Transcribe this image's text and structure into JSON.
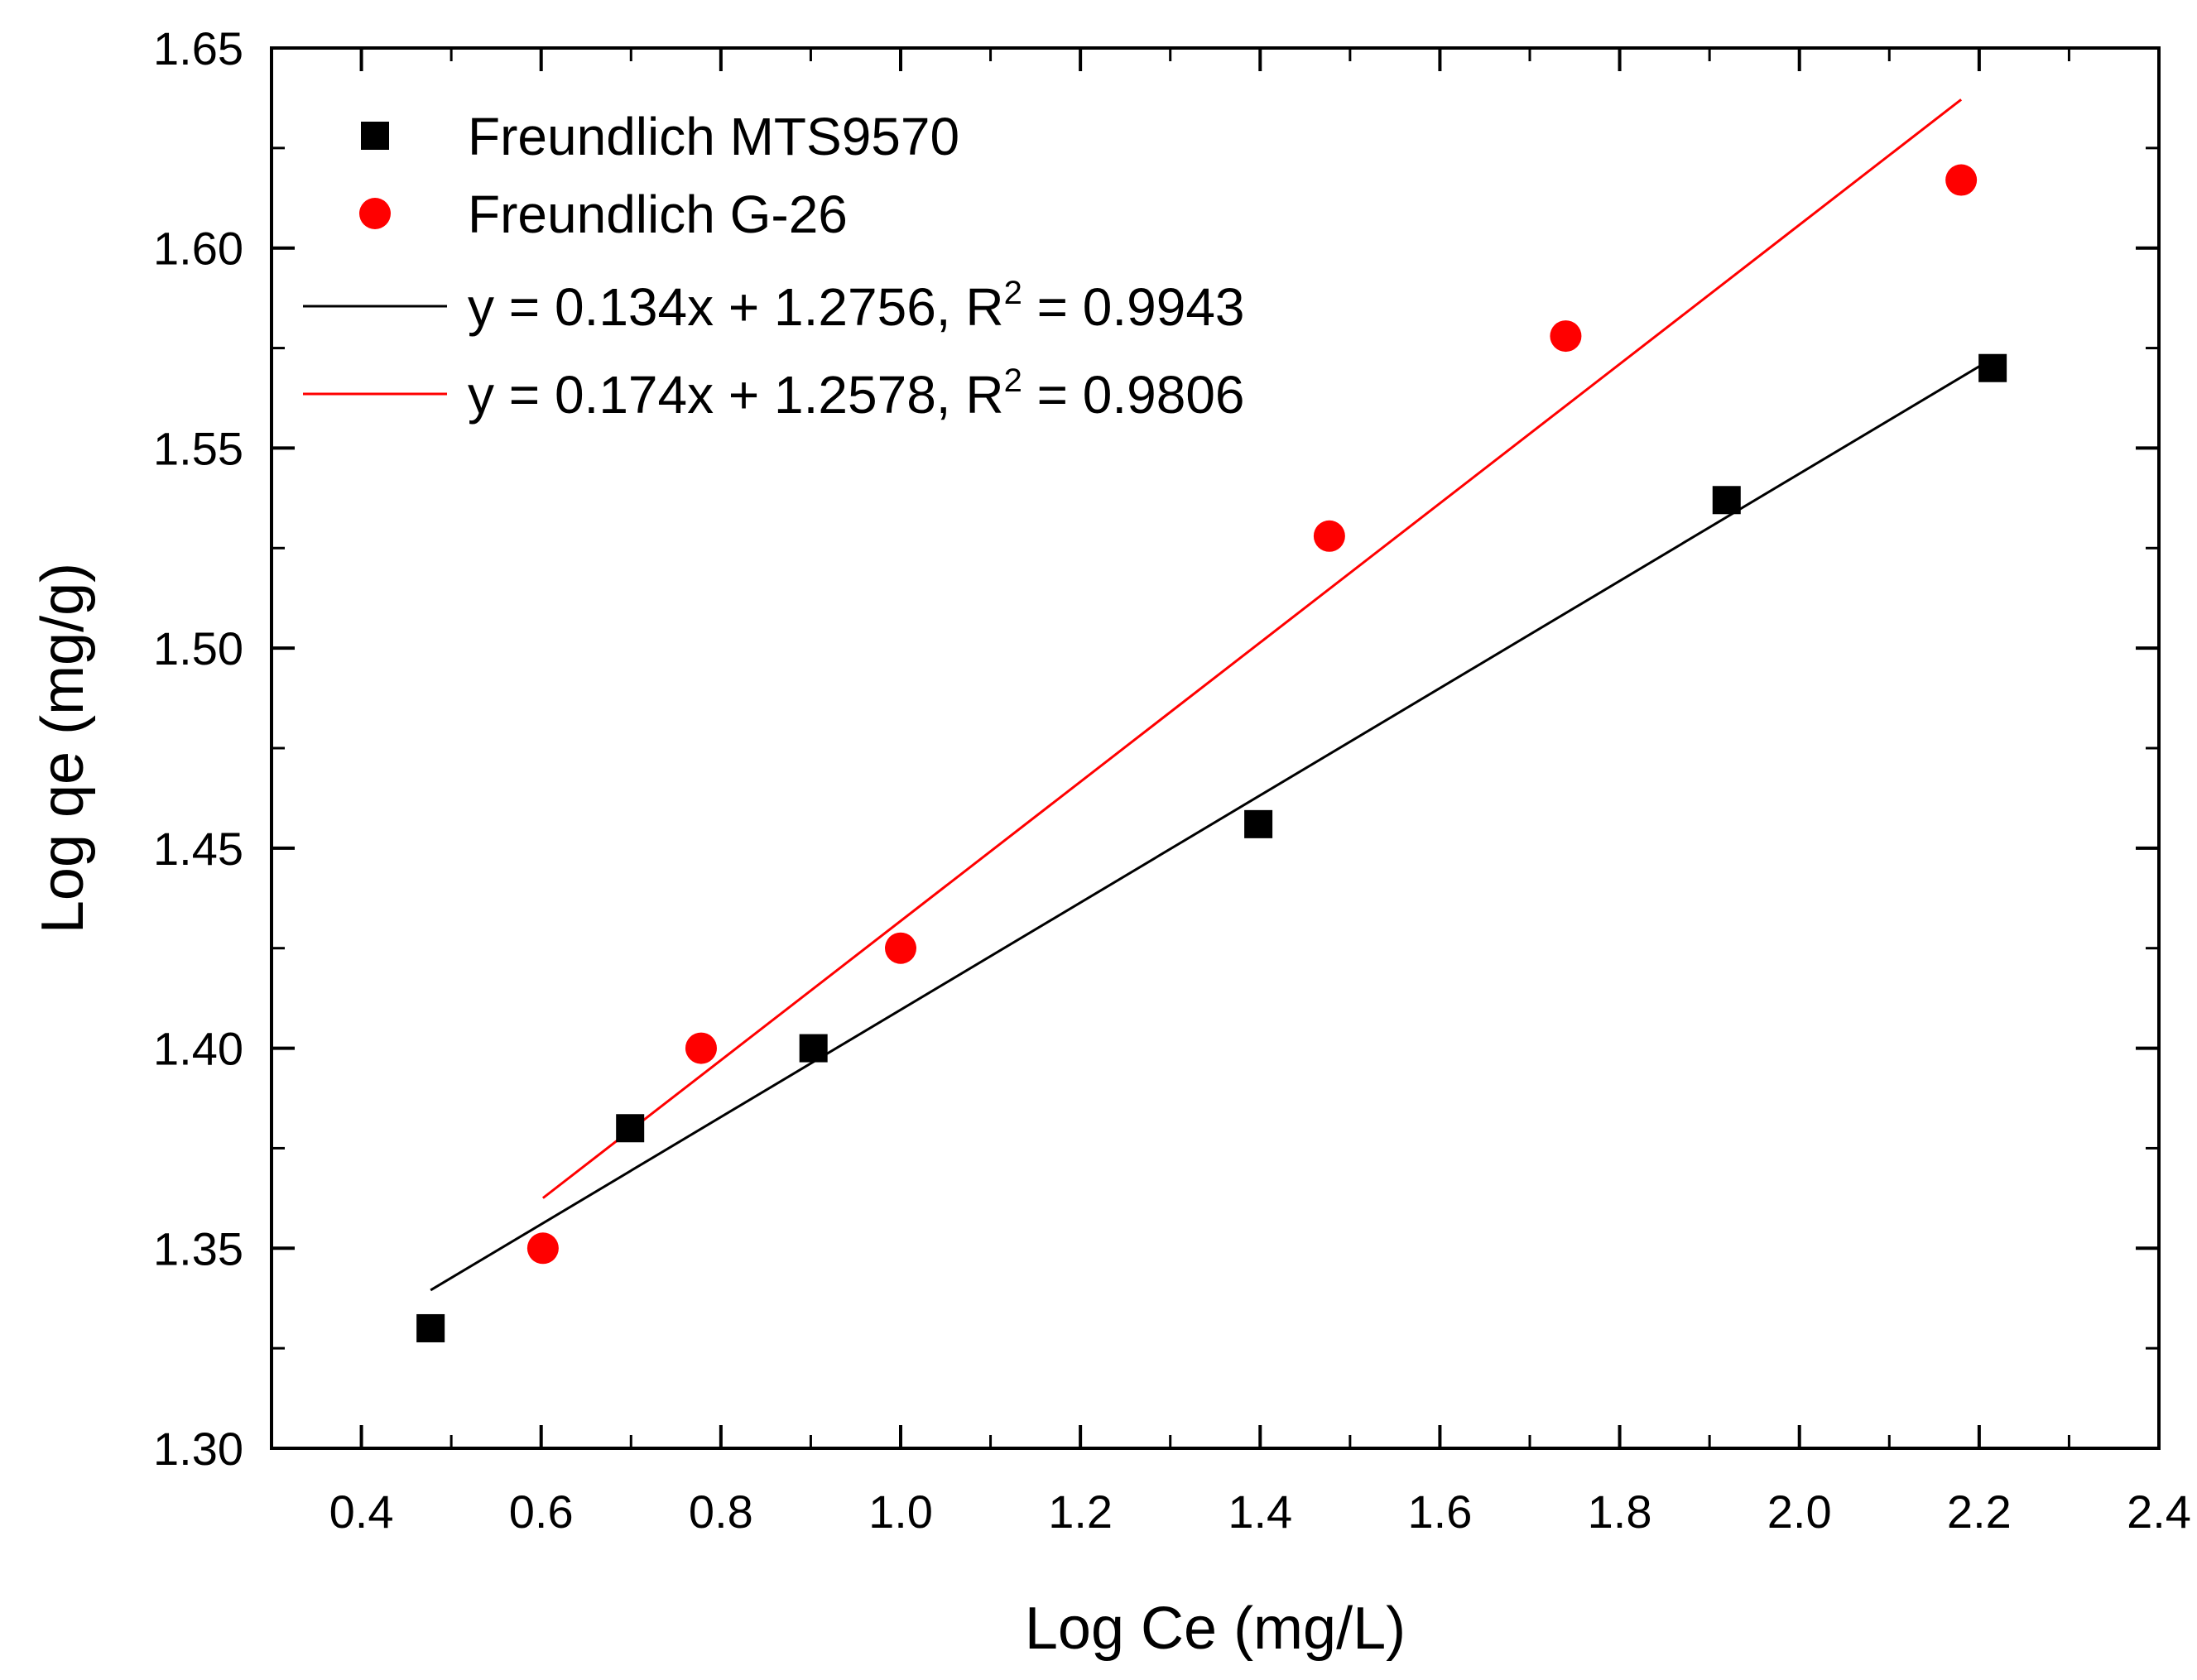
{
  "chart_data": {
    "type": "scatter",
    "xlabel": "Log Ce (mg/L)",
    "ylabel": "Log qe (mg/g)",
    "xlim": [
      0.3,
      2.4
    ],
    "ylim": [
      1.3,
      1.65
    ],
    "x_ticks": [
      0.4,
      0.6,
      0.8,
      1.0,
      1.2,
      1.4,
      1.6,
      1.8,
      2.0,
      2.2,
      2.4
    ],
    "x_tick_labels": [
      "0.4",
      "0.6",
      "0.8",
      "1.0",
      "1.2",
      "1.4",
      "1.6",
      "1.8",
      "2.0",
      "2.2",
      "2.4"
    ],
    "y_ticks": [
      1.3,
      1.35,
      1.4,
      1.45,
      1.5,
      1.55,
      1.6,
      1.65
    ],
    "y_tick_labels": [
      "1.30",
      "1.35",
      "1.40",
      "1.45",
      "1.50",
      "1.55",
      "1.60",
      "1.65"
    ],
    "series": [
      {
        "name": "Freundlich MTS9570",
        "marker": "square",
        "color": "#000000",
        "x": [
          0.477,
          0.699,
          0.903,
          1.398,
          1.919,
          2.215
        ],
        "y": [
          1.33,
          1.38,
          1.4,
          1.456,
          1.537,
          1.57
        ]
      },
      {
        "name": "Freundlich G-26",
        "marker": "circle",
        "color": "#ff0000",
        "x": [
          0.602,
          0.778,
          1.0,
          1.477,
          1.74,
          2.18
        ],
        "y": [
          1.35,
          1.4,
          1.425,
          1.528,
          1.578,
          1.617
        ]
      }
    ],
    "fits": [
      {
        "label_prefix": "y = 0.134x + 1.2756, R",
        "label_sup": "2",
        "label_suffix": " = 0.9943",
        "color": "#000000",
        "slope": 0.134,
        "intercept": 1.2756,
        "x_range": [
          0.477,
          2.215
        ]
      },
      {
        "label_prefix": "y = 0.174x + 1.2578, R",
        "label_sup": "2",
        "label_suffix": " = 0.9806",
        "color": "#ff0000",
        "slope": 0.174,
        "intercept": 1.2578,
        "x_range": [
          0.602,
          2.18
        ]
      }
    ],
    "legend_position": "top-left"
  }
}
